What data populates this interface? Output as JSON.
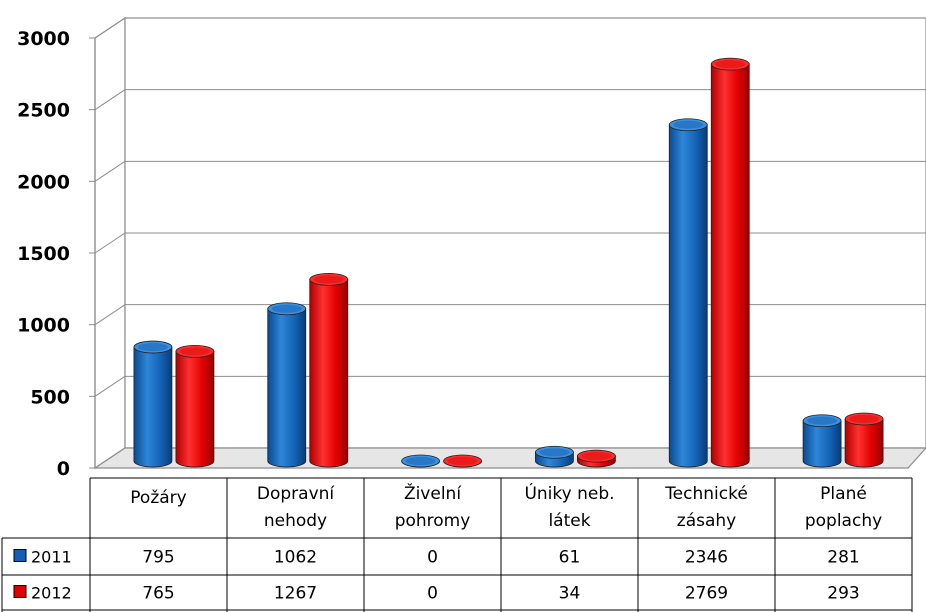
{
  "chart_data": {
    "type": "bar",
    "categories": [
      [
        "Požáry"
      ],
      [
        "Dopravní",
        "nehody"
      ],
      [
        "Živelní",
        "pohromy"
      ],
      [
        "Úniky neb.",
        "látek"
      ],
      [
        "Technické",
        "zásahy"
      ],
      [
        "Plané",
        "poplachy"
      ]
    ],
    "series": [
      {
        "name": "2011",
        "values": [
          795,
          1062,
          0,
          61,
          2346,
          281
        ],
        "labels": [
          "795",
          "1062",
          "0",
          "61",
          "2346",
          "281"
        ],
        "color": "#1060b8"
      },
      {
        "name": "2012",
        "values": [
          765,
          1267,
          0,
          34,
          2769,
          293
        ],
        "labels": [
          "765",
          "1267",
          "0",
          "34",
          "2769",
          "293"
        ],
        "color": "#e00000"
      }
    ],
    "yticks": [
      "0",
      "500",
      "1000",
      "1500",
      "2000",
      "2500",
      "3000"
    ],
    "ylim": [
      0,
      3000
    ],
    "grid": true,
    "legend": "data-table-left",
    "title": "",
    "xlabel": "",
    "ylabel": ""
  }
}
